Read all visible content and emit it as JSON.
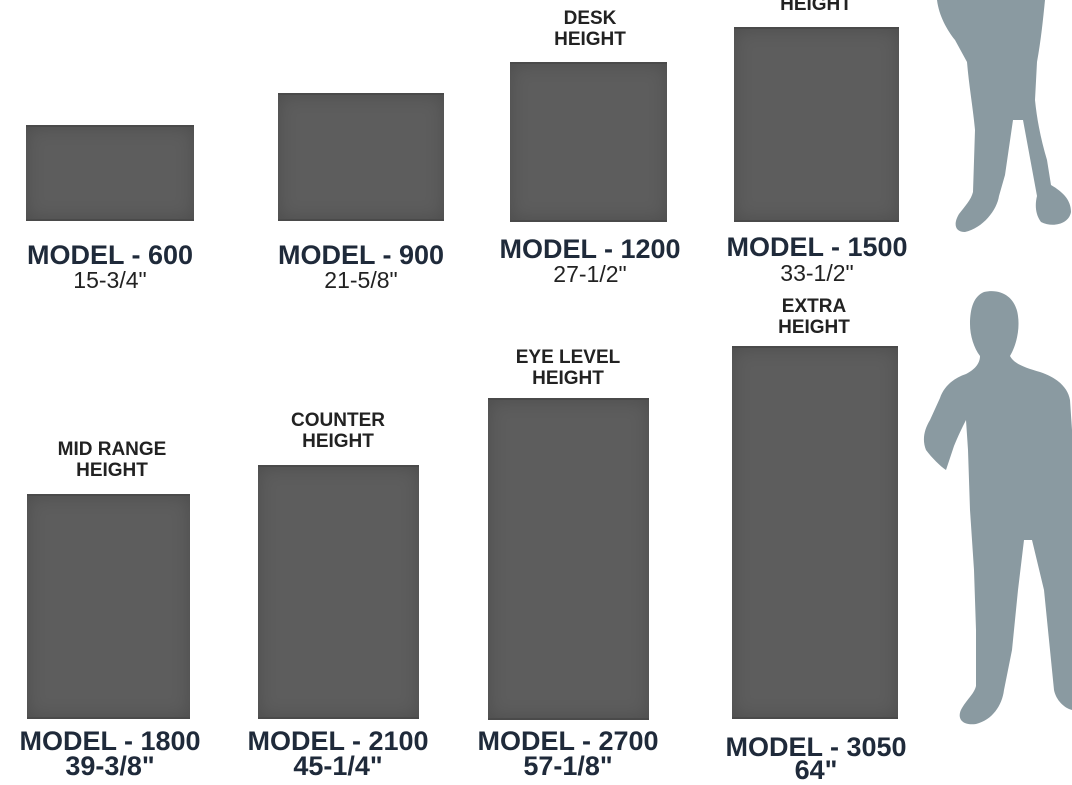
{
  "colors": {
    "panel": "#5d5d5d",
    "silhouette": "#8a9aa1",
    "text": "#1f2a3a"
  },
  "models": [
    {
      "name": "MODEL - 600",
      "size": "15-3/4\"",
      "height_label": ""
    },
    {
      "name": "MODEL - 900",
      "size": "21-5/8\"",
      "height_label": ""
    },
    {
      "name": "MODEL - 1200",
      "size": "27-1/2\"",
      "height_label": "DESK HEIGHT"
    },
    {
      "name": "MODEL - 1500",
      "size": "33-1/2\"",
      "height_label": "HEIGHT"
    },
    {
      "name": "MODEL - 1800",
      "size": "39-3/8\"",
      "height_label": "MID RANGE HEIGHT"
    },
    {
      "name": "MODEL - 2100",
      "size": "45-1/4\"",
      "height_label": "COUNTER HEIGHT"
    },
    {
      "name": "MODEL - 2700",
      "size": "57-1/8\"",
      "height_label": "EYE LEVEL HEIGHT"
    },
    {
      "name": "MODEL - 3050",
      "size": "64\"",
      "height_label": "EXTRA HEIGHT"
    }
  ],
  "silhouettes": [
    "person-silhouette",
    "person-silhouette"
  ]
}
